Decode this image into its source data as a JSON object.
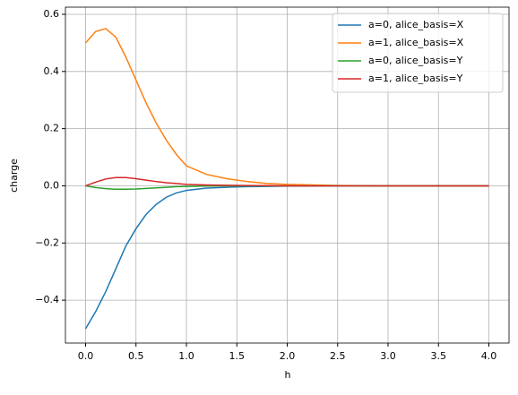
{
  "chart_data": {
    "type": "line",
    "xlabel": "h",
    "ylabel": "charge",
    "x": [
      0,
      0.1,
      0.2,
      0.3,
      0.4,
      0.5,
      0.6,
      0.7,
      0.8,
      0.9,
      1.0,
      1.2,
      1.4,
      1.6,
      1.8,
      2.0,
      2.5,
      3.0,
      3.5,
      4.0
    ],
    "series": [
      {
        "name": "a=0, alice_basis=X",
        "color": "#1f77b4",
        "values": [
          -0.5,
          -0.44,
          -0.37,
          -0.29,
          -0.21,
          -0.15,
          -0.1,
          -0.065,
          -0.04,
          -0.025,
          -0.016,
          -0.008,
          -0.005,
          -0.003,
          -0.002,
          -0.001,
          0,
          0,
          0,
          0
        ]
      },
      {
        "name": "a=1, alice_basis=X",
        "color": "#ff7f0e",
        "values": [
          0.5,
          0.54,
          0.55,
          0.52,
          0.45,
          0.37,
          0.29,
          0.22,
          0.16,
          0.11,
          0.07,
          0.04,
          0.025,
          0.015,
          0.008,
          0.005,
          0.001,
          0,
          0,
          0
        ]
      },
      {
        "name": "a=0, alice_basis=Y",
        "color": "#2ca02c",
        "values": [
          0,
          -0.006,
          -0.01,
          -0.012,
          -0.012,
          -0.011,
          -0.009,
          -0.007,
          -0.005,
          -0.003,
          -0.002,
          -0.001,
          0,
          0,
          0,
          0,
          0,
          0,
          0,
          0
        ]
      },
      {
        "name": "a=1, alice_basis=Y",
        "color": "#d62728",
        "values": [
          0,
          0.013,
          0.024,
          0.029,
          0.029,
          0.025,
          0.02,
          0.015,
          0.011,
          0.008,
          0.005,
          0.003,
          0.002,
          0.001,
          0.0005,
          0,
          0,
          0,
          0,
          0
        ]
      }
    ],
    "xlim": [
      -0.2,
      4.2
    ],
    "ylim": [
      -0.55,
      0.625
    ],
    "xticks": [
      {
        "value": 0,
        "label": "0.0"
      },
      {
        "value": 0.5,
        "label": "0.5"
      },
      {
        "value": 1,
        "label": "1.0"
      },
      {
        "value": 1.5,
        "label": "1.5"
      },
      {
        "value": 2,
        "label": "2.0"
      },
      {
        "value": 2.5,
        "label": "2.5"
      },
      {
        "value": 3,
        "label": "3.0"
      },
      {
        "value": 3.5,
        "label": "3.5"
      },
      {
        "value": 4,
        "label": "4.0"
      }
    ],
    "yticks": [
      {
        "value": -0.4,
        "label": "−0.4"
      },
      {
        "value": -0.2,
        "label": "−0.2"
      },
      {
        "value": 0,
        "label": "0.0"
      },
      {
        "value": 0.2,
        "label": "0.2"
      },
      {
        "value": 0.4,
        "label": "0.4"
      },
      {
        "value": 0.6,
        "label": "0.6"
      }
    ],
    "grid": true,
    "legend": "upper right"
  }
}
